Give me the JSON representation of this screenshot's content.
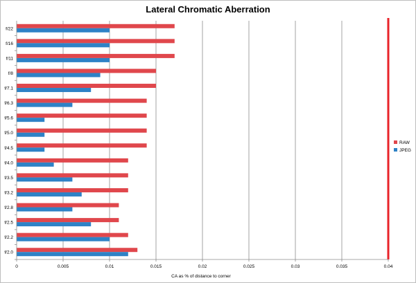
{
  "chart_data": {
    "type": "bar",
    "orientation": "horizontal",
    "title": "Lateral Chromatic Aberration",
    "xlabel": "CA as % of distance  to corner",
    "ylabel": "",
    "xlim": [
      0,
      0.04
    ],
    "xticks": [
      "0",
      "0.005",
      "0.01",
      "0.015",
      "0.02",
      "0.025",
      "0.03",
      "0.035",
      "0.04"
    ],
    "grid": true,
    "legend_position": "right",
    "categories": [
      "f/2.0",
      "f/2.2",
      "f/2.5",
      "f/2.8",
      "f/3.2",
      "f/3.5",
      "f/4.0",
      "f/4.5",
      "f/5.0",
      "f/5.6",
      "f/6.3",
      "f/7.1",
      "f/8",
      "f/11",
      "f/16",
      "f/22"
    ],
    "series": [
      {
        "name": "RAW",
        "color": "#e0474c",
        "values": [
          0.013,
          0.012,
          0.011,
          0.011,
          0.012,
          0.012,
          0.012,
          0.014,
          0.014,
          0.014,
          0.014,
          0.015,
          0.015,
          0.017,
          0.017,
          0.017
        ]
      },
      {
        "name": "JPEG",
        "color": "#2e82c6",
        "values": [
          0.012,
          0.01,
          0.008,
          0.006,
          0.007,
          0.006,
          0.004,
          0.003,
          0.003,
          0.003,
          0.006,
          0.008,
          0.009,
          0.01,
          0.01,
          0.01
        ]
      }
    ],
    "reference_line": {
      "x": 0.04,
      "color": "#e8232a"
    }
  }
}
